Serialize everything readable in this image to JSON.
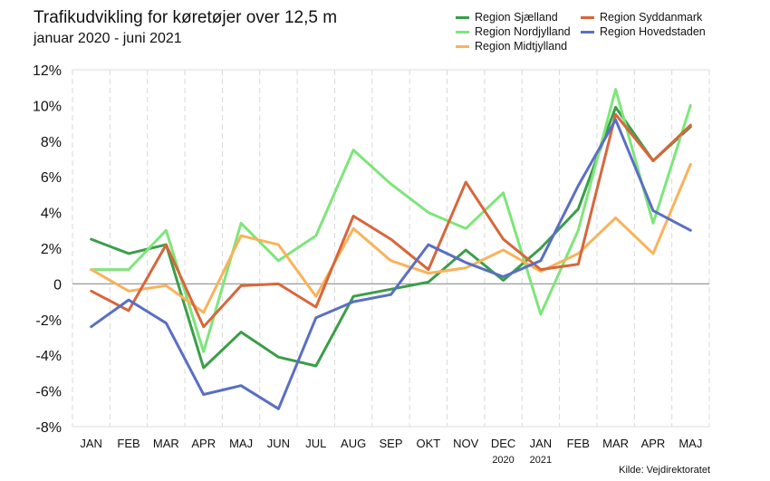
{
  "chart_data": {
    "type": "line",
    "title": "Trafikudvikling for køretøjer over 12,5 m",
    "subtitle": "januar 2020 - juni 2021",
    "source": "Kilde: Vejdirektoratet",
    "categories": [
      "JAN",
      "FEB",
      "MAR",
      "APR",
      "MAJ",
      "JUN",
      "JUL",
      "AUG",
      "SEP",
      "OKT",
      "NOV",
      "DEC",
      "JAN",
      "FEB",
      "MAR",
      "APR",
      "MAJ"
    ],
    "category_sublabels": [
      "",
      "",
      "",
      "",
      "",
      "",
      "",
      "",
      "",
      "",
      "",
      "2020",
      "2021",
      "",
      "",
      "",
      ""
    ],
    "ylim": [
      -8,
      12
    ],
    "yticks": [
      -8,
      -6,
      -4,
      -2,
      0,
      2,
      4,
      6,
      8,
      10,
      12
    ],
    "ytick_labels": [
      "-8%",
      "-6%",
      "-4%",
      "-2%",
      "0",
      "2%",
      "4%",
      "6%",
      "8%",
      "10%",
      "12%"
    ],
    "grid": "vertical",
    "legend_position": "top-right",
    "series": [
      {
        "name": "Region Sjælland",
        "color": "#3a9e48",
        "values": [
          2.5,
          1.7,
          2.2,
          -4.7,
          -2.7,
          -4.1,
          -4.6,
          -0.7,
          -0.3,
          0.1,
          1.9,
          0.2,
          2.0,
          4.2,
          9.9,
          6.9,
          8.8
        ]
      },
      {
        "name": "Region Nordjylland",
        "color": "#7ee57b",
        "values": [
          0.8,
          0.8,
          3.0,
          -3.8,
          3.4,
          1.3,
          2.7,
          7.5,
          5.6,
          4.0,
          3.1,
          5.1,
          -1.7,
          3.0,
          10.9,
          3.4,
          10.0
        ]
      },
      {
        "name": "Region Midtjylland",
        "color": "#f9b35a",
        "values": [
          0.8,
          -0.4,
          -0.1,
          -1.6,
          2.7,
          2.2,
          -0.7,
          3.1,
          1.3,
          0.6,
          0.9,
          1.9,
          0.7,
          1.7,
          3.7,
          1.7,
          6.7
        ]
      },
      {
        "name": "Region Syddanmark",
        "color": "#d8663a",
        "values": [
          -0.4,
          -1.5,
          2.2,
          -2.4,
          -0.1,
          0.0,
          -1.3,
          3.8,
          2.5,
          0.8,
          5.7,
          2.5,
          0.8,
          1.1,
          9.5,
          6.9,
          8.9
        ]
      },
      {
        "name": "Region Hovedstaden",
        "color": "#5a6fc4",
        "values": [
          -2.4,
          -0.9,
          -2.2,
          -6.2,
          -5.7,
          -7.0,
          -1.9,
          -1.0,
          -0.6,
          2.2,
          1.2,
          0.4,
          1.3,
          5.5,
          9.2,
          4.1,
          3.0
        ]
      }
    ]
  }
}
